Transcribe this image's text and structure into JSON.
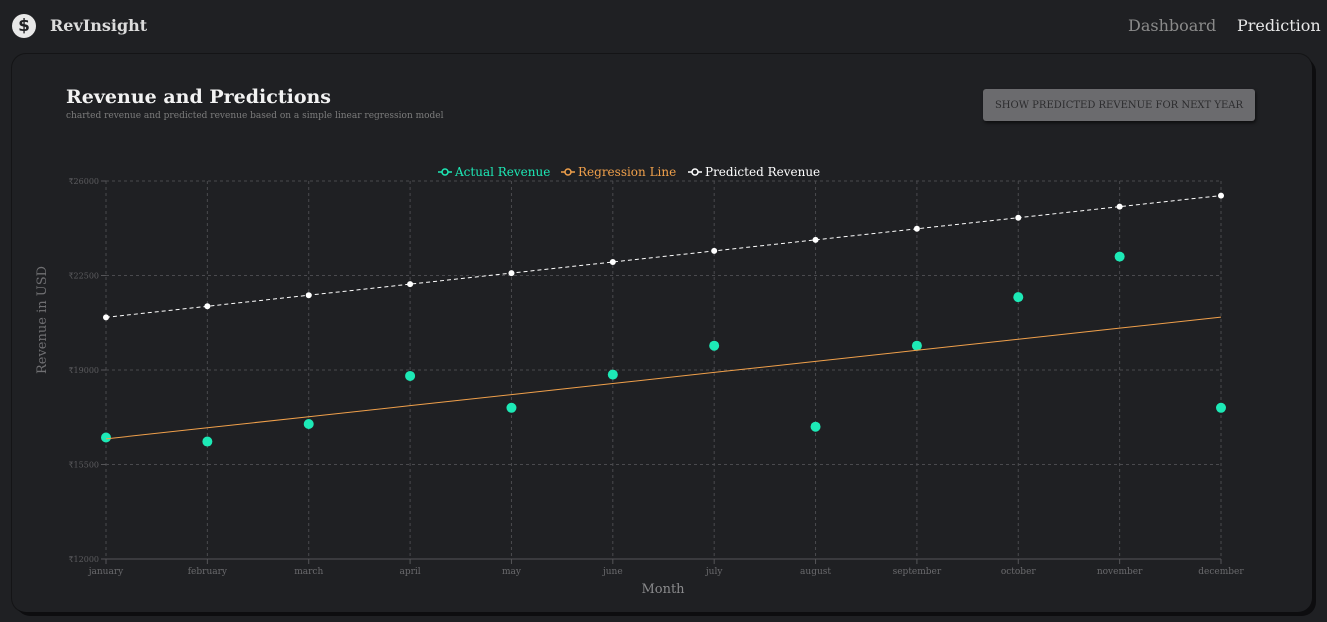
{
  "brand": {
    "name": "RevInsight",
    "logo_icon": "dollar-icon"
  },
  "nav": {
    "dashboard": "Dashboard",
    "prediction": "Prediction"
  },
  "page": {
    "title": "Revenue and Predictions",
    "subtitle": "charted revenue and predicted revenue based on a simple linear regression model",
    "button_label": "SHOW PREDICTED REVENUE FOR NEXT YEAR"
  },
  "colors": {
    "actual": "#1de9b6",
    "regression": "#f0a04b",
    "predicted": "#ffffff",
    "grid": "#4a4a4e"
  },
  "chart_data": {
    "type": "scatter",
    "categories": [
      "january",
      "february",
      "march",
      "april",
      "may",
      "june",
      "july",
      "august",
      "september",
      "october",
      "november",
      "december"
    ],
    "ylabel": "Revenue in USD",
    "xlabel": "Month",
    "ylim": [
      12000,
      26000
    ],
    "y_ticks": [
      "₹12000",
      "₹15500",
      "₹19000",
      "₹22500",
      "₹26000"
    ],
    "grid": true,
    "legend_placement": "top-center",
    "series": [
      {
        "name": "Actual Revenue",
        "kind": "scatter",
        "values": [
          16500,
          16350,
          17000,
          18780,
          17600,
          18830,
          19900,
          16900,
          19900,
          21700,
          23200,
          17600
        ]
      },
      {
        "name": "Regression Line",
        "kind": "line",
        "values": [
          16450,
          16860,
          17270,
          17680,
          18090,
          18500,
          18910,
          19320,
          19730,
          20140,
          20550,
          20960
        ]
      },
      {
        "name": "Predicted Revenue",
        "kind": "line-dashed",
        "values": [
          20950,
          21360,
          21770,
          22180,
          22590,
          23000,
          23410,
          23820,
          24230,
          24640,
          25050,
          25460
        ]
      }
    ]
  }
}
